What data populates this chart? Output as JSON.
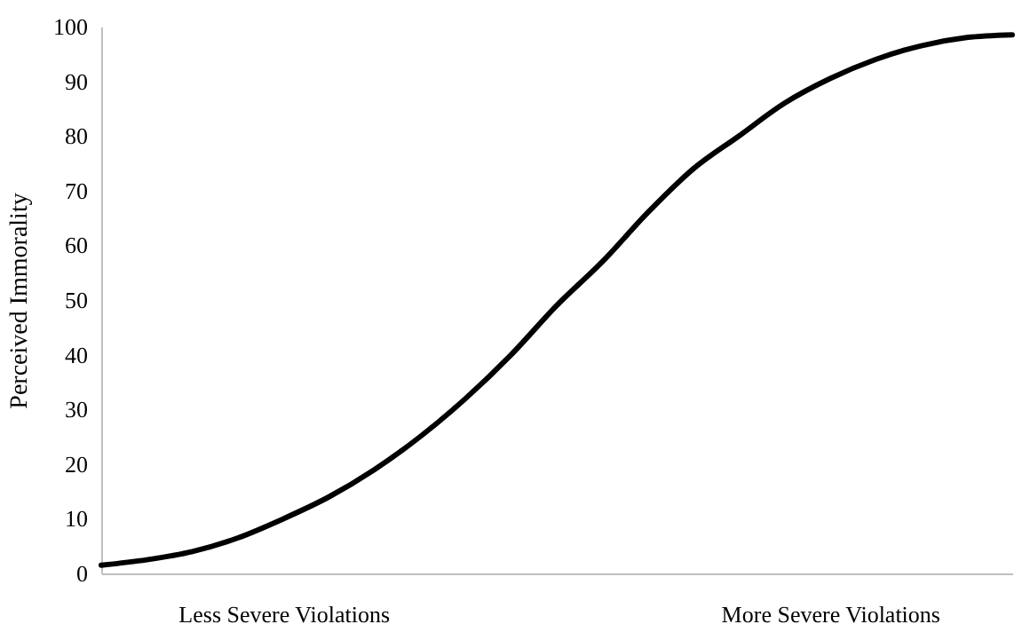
{
  "chart_data": {
    "type": "line",
    "ylabel": "Perceived Immorality",
    "categories": [
      null,
      null,
      null,
      null,
      "Less Severe Violations",
      null,
      null,
      null,
      null,
      null,
      null,
      null,
      null,
      null,
      null,
      null,
      "More Severe Violations",
      null,
      null,
      null,
      null
    ],
    "series": [
      {
        "color": "#000000",
        "values": [
          1.5,
          2.5,
          4,
          6.5,
          10,
          14,
          19,
          25,
          32,
          40,
          49,
          57,
          66,
          74,
          80,
          86,
          90.5,
          94,
          96.5,
          98,
          98.5
        ]
      }
    ],
    "ylim": [
      0,
      100
    ],
    "yticks": [
      0,
      10,
      20,
      30,
      40,
      50,
      60,
      70,
      80,
      90,
      100
    ],
    "grid": false,
    "marker": "none",
    "line_style": "solid"
  }
}
